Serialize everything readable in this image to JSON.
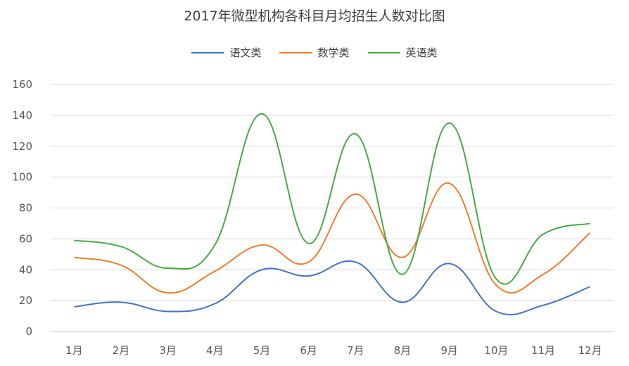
{
  "chart_data": {
    "type": "line",
    "title": "2017年微型机构各科目月均招生人数对比图",
    "categories": [
      "1月",
      "2月",
      "3月",
      "4月",
      "5月",
      "6月",
      "7月",
      "8月",
      "9月",
      "10月",
      "11月",
      "12月"
    ],
    "series": [
      {
        "name": "语文类",
        "color": "#4472C4",
        "values": [
          16,
          19,
          13,
          18,
          40,
          36,
          45,
          19,
          44,
          13,
          17,
          29
        ]
      },
      {
        "name": "数学类",
        "color": "#ED7D31",
        "values": [
          48,
          43,
          25,
          39,
          56,
          45,
          89,
          48,
          96,
          30,
          37,
          64
        ]
      },
      {
        "name": "英语类",
        "color": "#44AA44",
        "values": [
          59,
          55,
          41,
          56,
          141,
          57,
          128,
          37,
          135,
          34,
          63,
          70
        ]
      }
    ],
    "ylim": [
      0,
      160
    ],
    "yticks": [
      0,
      20,
      40,
      60,
      80,
      100,
      120,
      140,
      160
    ],
    "grid": true,
    "legend": "top-center"
  }
}
